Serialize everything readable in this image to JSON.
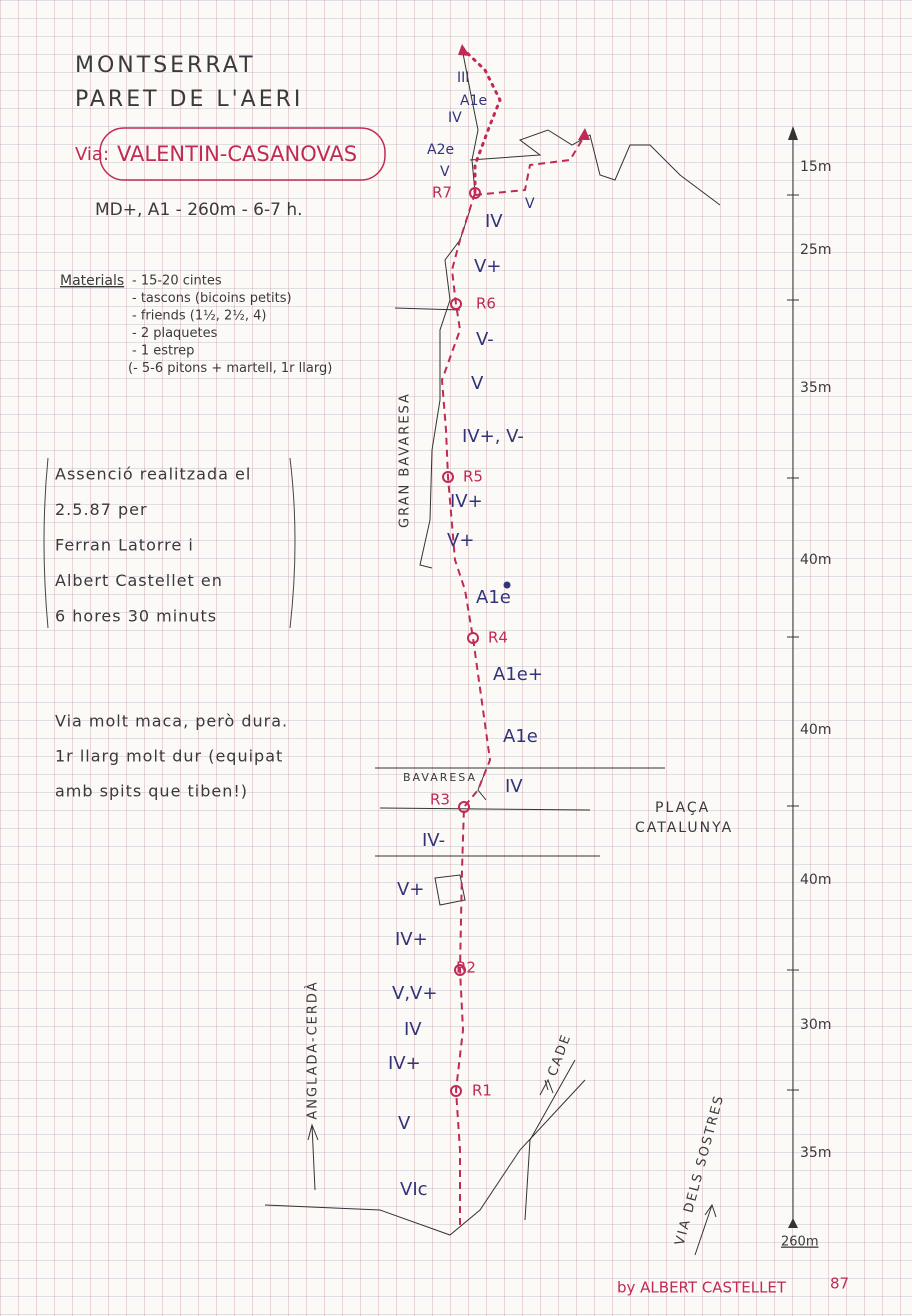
{
  "header": {
    "title": "MONTSERRAT",
    "subtitle": "PARET DE L'AERI",
    "route_prefix": "Via:",
    "route_name": "VALENTIN-CASANOVAS",
    "summary": "MD+, A1 - 260m - 6-7 h."
  },
  "materials": {
    "label": "Materials",
    "items": [
      "- 15-20 cintes",
      "- tascons (bicoins petits)",
      "- friends (1½, 2½, 4)",
      "- 2 plaquetes",
      "- 1 estrep",
      "(- 5-6 pitons + martell, 1r llarg)"
    ]
  },
  "ascent": {
    "lines": [
      "Assenció realitzada el",
      "2.5.87 per",
      "Ferran Latorre i",
      "Albert Castellet en",
      "6 hores 30 minuts"
    ]
  },
  "note": {
    "lines": [
      "Via molt maca, però dura.",
      "1r llarg molt dur (equipat",
      "amb spits que tiben!)"
    ]
  },
  "topo": {
    "grades": [
      "III",
      "A1e",
      "IV",
      "A2e",
      "V",
      "V",
      "IV",
      "V+",
      "V-",
      "V",
      "IV+, V-",
      "IV+",
      "V+",
      "A1e",
      "A1e+",
      "A1e",
      "IV",
      "IV-",
      "V+",
      "IV+",
      "V,V+",
      "IV",
      "IV+",
      "V",
      "VIc"
    ],
    "belays": [
      "R7",
      "R6",
      "R5",
      "R4",
      "R3",
      "R2",
      "R1"
    ],
    "features": [
      "GRAN BAVARESA",
      "BAVARESA",
      "PLAÇA",
      "CATALUNYA",
      "ANGLADA-CERDÀ",
      "CADE",
      "VIA DELS SOSTRES"
    ]
  },
  "scale": {
    "pitches": [
      "15m",
      "25m",
      "35m",
      "40m",
      "40m",
      "40m",
      "30m",
      "35m"
    ],
    "total": "260m"
  },
  "signature": {
    "text": "by ALBERT CASTELLET",
    "year": "87"
  }
}
